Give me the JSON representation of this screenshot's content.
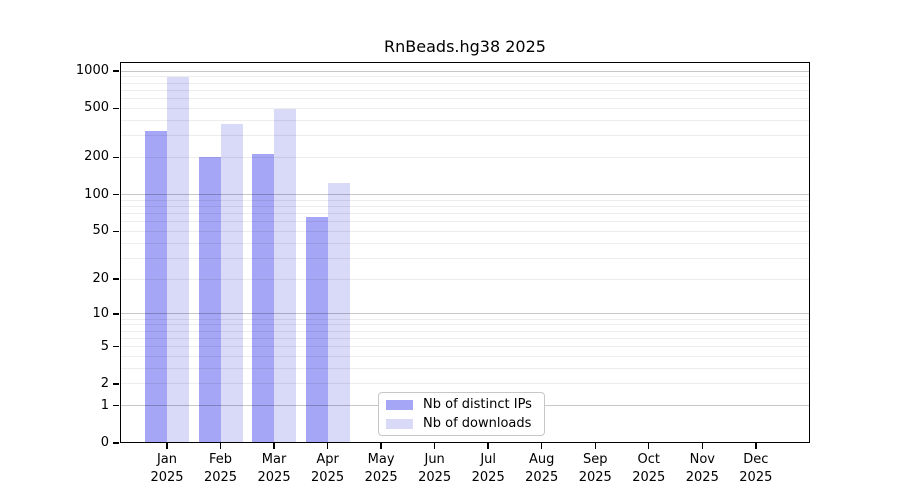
{
  "chart_data": {
    "type": "bar",
    "title": "RnBeads.hg38 2025",
    "categories": [
      "Jan 2025",
      "Feb 2025",
      "Mar 2025",
      "Apr 2025",
      "May 2025",
      "Jun 2025",
      "Jul 2025",
      "Aug 2025",
      "Sep 2025",
      "Oct 2025",
      "Nov 2025",
      "Dec 2025"
    ],
    "series": [
      {
        "name": "Nb of distinct IPs",
        "color": "#a6a6f6",
        "values": [
          330,
          200,
          215,
          65,
          null,
          null,
          null,
          null,
          null,
          null,
          null,
          null
        ]
      },
      {
        "name": "Nb of downloads",
        "color": "#d9d9f8",
        "values": [
          890,
          370,
          490,
          125,
          null,
          null,
          null,
          null,
          null,
          null,
          null,
          null
        ]
      }
    ],
    "yscale": "log1p",
    "ylim": [
      0,
      1000
    ],
    "yticks": [
      0,
      1,
      2,
      5,
      10,
      20,
      50,
      100,
      200,
      500,
      1000
    ],
    "grid": "horizontal major and minor gridlines drawn over bars",
    "legend_position": "inside bottom-center",
    "colors": {
      "axis": "#000000",
      "background": "#ffffff",
      "text": "#000000",
      "major_grid": "rgba(0,0,0,0.22)",
      "minor_grid": "rgba(0,0,0,0.07)"
    }
  }
}
